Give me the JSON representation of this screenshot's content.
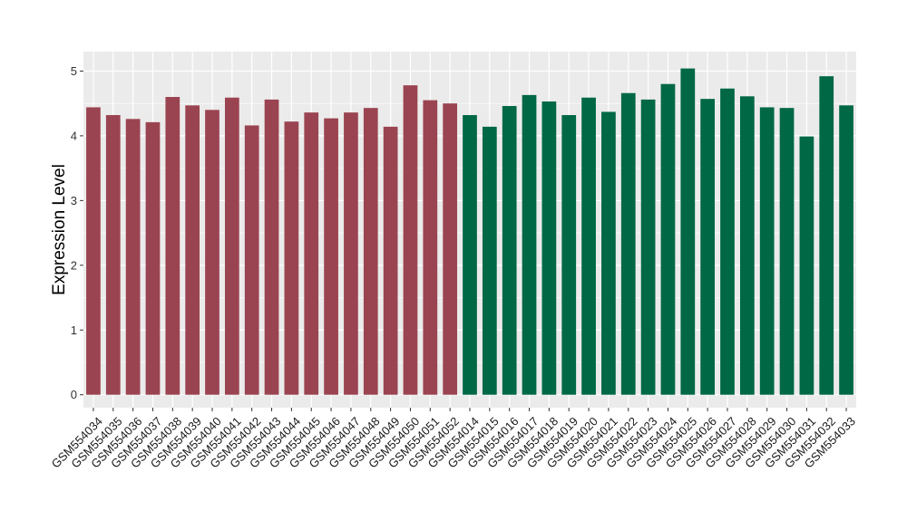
{
  "chart_data": {
    "type": "bar",
    "title": "",
    "xlabel": "",
    "ylabel": "Expression Level",
    "ylim": [
      -0.2,
      5.3
    ],
    "yticks": [
      0,
      1,
      2,
      3,
      4,
      5
    ],
    "grid": true,
    "legend": "none",
    "colors": {
      "group1": "#9b4451",
      "group2": "#006845",
      "panel": "#ebebeb",
      "grid": "#ffffff"
    },
    "categories": [
      "GSM554034",
      "GSM554035",
      "GSM554036",
      "GSM554037",
      "GSM554038",
      "GSM554039",
      "GSM554040",
      "GSM554041",
      "GSM554042",
      "GSM554043",
      "GSM554044",
      "GSM554045",
      "GSM554046",
      "GSM554047",
      "GSM554048",
      "GSM554049",
      "GSM554050",
      "GSM554051",
      "GSM554052",
      "GSM554014",
      "GSM554015",
      "GSM554016",
      "GSM554017",
      "GSM554018",
      "GSM554019",
      "GSM554020",
      "GSM554021",
      "GSM554022",
      "GSM554023",
      "GSM554024",
      "GSM554025",
      "GSM554026",
      "GSM554027",
      "GSM554028",
      "GSM554029",
      "GSM554030",
      "GSM554031",
      "GSM554032",
      "GSM554033"
    ],
    "values": [
      4.44,
      4.32,
      4.26,
      4.21,
      4.6,
      4.47,
      4.4,
      4.59,
      4.16,
      4.56,
      4.22,
      4.36,
      4.27,
      4.36,
      4.43,
      4.14,
      4.78,
      4.55,
      4.5,
      4.32,
      4.14,
      4.46,
      4.63,
      4.53,
      4.32,
      4.59,
      4.37,
      4.66,
      4.56,
      4.8,
      5.04,
      4.57,
      4.73,
      4.61,
      4.44,
      4.43,
      3.99,
      4.92,
      4.47
    ],
    "groups": [
      1,
      1,
      1,
      1,
      1,
      1,
      1,
      1,
      1,
      1,
      1,
      1,
      1,
      1,
      1,
      1,
      1,
      1,
      1,
      2,
      2,
      2,
      2,
      2,
      2,
      2,
      2,
      2,
      2,
      2,
      2,
      2,
      2,
      2,
      2,
      2,
      2,
      2,
      2
    ]
  }
}
